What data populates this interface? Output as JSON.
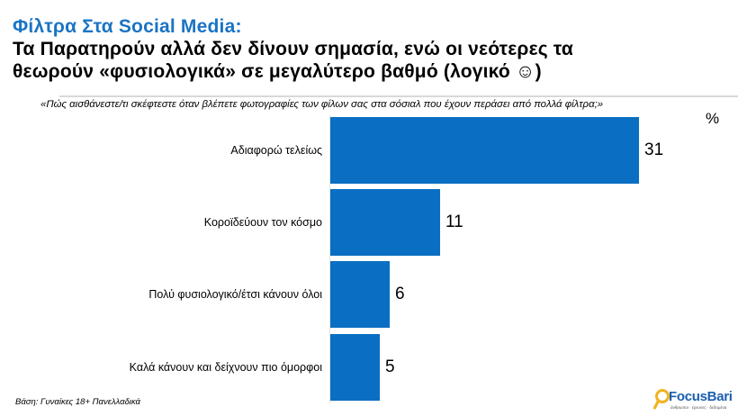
{
  "header": {
    "title": "Φίλτρα Στα Social Media:",
    "subtitle_line1": "Τα Παρατηρούν αλλά δεν δίνουν σημασία, ενώ οι νεότερες τα",
    "subtitle_line2": "θεωρούν «φυσιολογικά» σε μεγαλύτερο βαθμό (λογικό ☺)"
  },
  "question": "«Πώς αισθάνεστε/τι σκέφτεστε όταν βλέπετε φωτογραφίες των φίλων σας στα σόσιαλ που έχουν περάσει από πολλά φίλτρα;»",
  "unit_label": "%",
  "footer": {
    "base": "Βάση: Γυναίκες 18+ Πανελλαδικά",
    "logo_text": "FocusBari",
    "logo_tagline": "άνθρωποι · έρευνες · δεδομένα"
  },
  "colors": {
    "bar": "#0a6fc2",
    "title": "#1a74c4",
    "logo_blue": "#1a5fb0",
    "logo_ring": "#f2b320"
  },
  "chart_data": {
    "type": "bar",
    "orientation": "horizontal",
    "title": "Φίλτρα Στα Social Media",
    "subtitle": "Τα Παρατηρούν αλλά δεν δίνουν σημασία, ενώ οι νεότερες τα θεωρούν «φυσιολογικά» σε μεγαλύτερο βαθμό (λογικό ☺)",
    "question": "«Πώς αισθάνεστε/τι σκέφτεστε όταν βλέπετε φωτογραφίες των φίλων σας στα σόσιαλ που έχουν περάσει από πολλά φίλτρα;»",
    "categories": [
      "Αδιαφορώ τελείως",
      "Κοροϊδεύουν τον κόσμο",
      "Πολύ φυσιολογικό/έτσι κάνουν όλοι",
      "Καλά κάνουν και δείχνουν πιο όμορφοι"
    ],
    "values": [
      31,
      11,
      6,
      5
    ],
    "xlabel": "",
    "ylabel": "",
    "unit": "%",
    "data_labels": true,
    "grid": false,
    "legend": null,
    "note": "Βάση: Γυναίκες 18+ Πανελλαδικά"
  }
}
